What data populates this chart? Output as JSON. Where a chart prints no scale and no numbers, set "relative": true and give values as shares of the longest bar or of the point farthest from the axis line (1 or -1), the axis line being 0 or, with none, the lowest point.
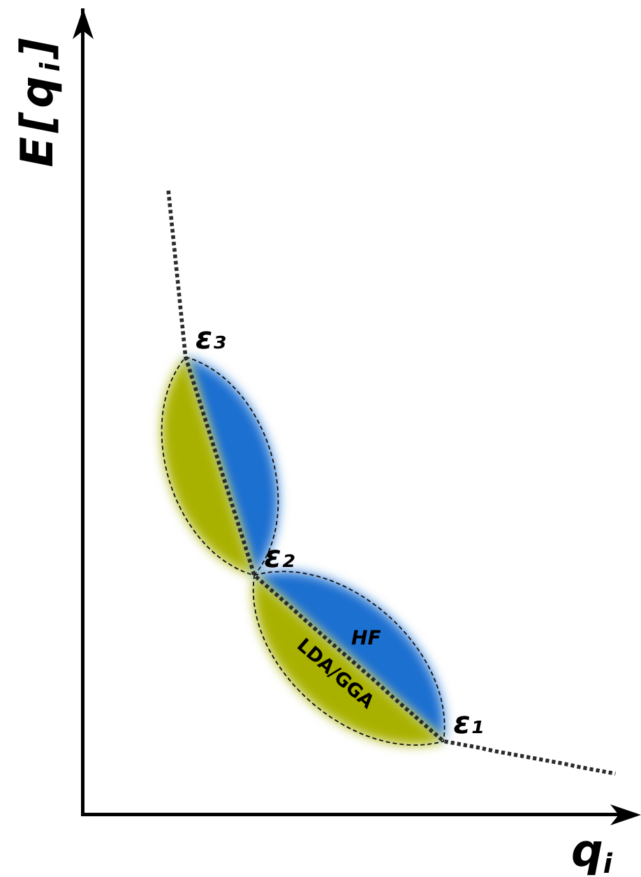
{
  "chart_data": {
    "type": "line",
    "relative": true,
    "xlabel": "q$_{i}$",
    "ylabel": "E[q$_{i}$]",
    "categories": [
      null,
      null,
      null,
      null,
      null,
      null,
      null,
      null,
      null,
      null,
      null,
      null,
      null,
      null,
      null,
      null,
      null,
      null,
      null,
      null,
      null,
      null,
      null,
      null,
      null,
      null,
      null,
      null,
      null,
      null,
      null,
      null,
      null
    ],
    "series": [
      {
        "color": "#2b2b2b",
        "values": [
          null,
          null,
          null,
          null,
          null,
          1.0,
          0.733,
          0.646,
          0.558,
          0.471,
          0.383,
          0.359,
          0.335,
          0.31,
          0.286,
          0.262,
          0.238,
          0.214,
          0.189,
          0.165,
          0.141,
          0.117,
          0.112,
          0.107,
          0.101,
          0.096,
          0.091,
          0.086,
          0.081,
          0.075,
          0.07,
          0.065,
          null
        ]
      }
    ],
    "line_style": "dotted",
    "marker": "none",
    "annotations": [
      "ε₃",
      "ε₂",
      "ε₁",
      "HF",
      "LDA/GGA"
    ]
  }
}
